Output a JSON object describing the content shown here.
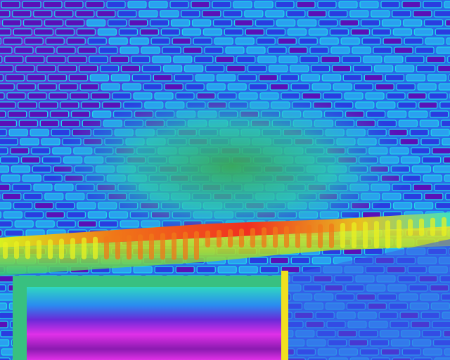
{
  "scene": {
    "subject": "thermal-image-brick-wall",
    "palette": {
      "cold_deep": "#5a10b8",
      "cold": "#2a3de0",
      "cool": "#2aa0f0",
      "mild": "#2ee6e0",
      "warm_green": "#38b070",
      "warm_yellow": "#e8f020",
      "hot_orange": "#f07818",
      "hot_red": "#f02020",
      "window_magenta": "#e030e8",
      "mortar": "#1fd8e8"
    }
  }
}
